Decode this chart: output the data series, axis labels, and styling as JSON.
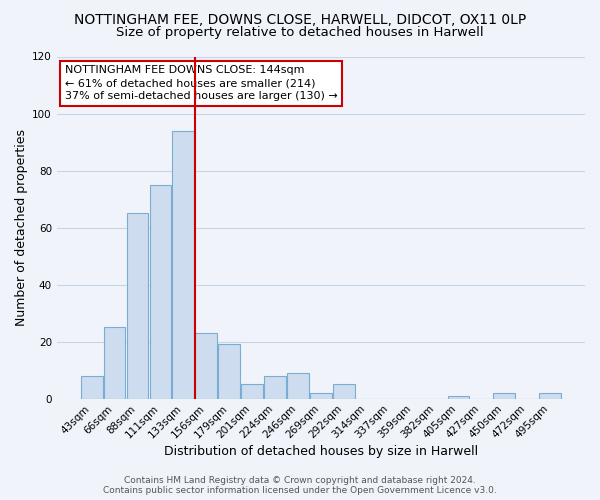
{
  "title": "NOTTINGHAM FEE, DOWNS CLOSE, HARWELL, DIDCOT, OX11 0LP",
  "subtitle": "Size of property relative to detached houses in Harwell",
  "xlabel": "Distribution of detached houses by size in Harwell",
  "ylabel": "Number of detached properties",
  "bar_labels": [
    "43sqm",
    "66sqm",
    "88sqm",
    "111sqm",
    "133sqm",
    "156sqm",
    "179sqm",
    "201sqm",
    "224sqm",
    "246sqm",
    "269sqm",
    "292sqm",
    "314sqm",
    "337sqm",
    "359sqm",
    "382sqm",
    "405sqm",
    "427sqm",
    "450sqm",
    "472sqm",
    "495sqm"
  ],
  "bar_heights": [
    8,
    25,
    65,
    75,
    94,
    23,
    19,
    5,
    8,
    9,
    2,
    5,
    0,
    0,
    0,
    0,
    1,
    0,
    2,
    0,
    2
  ],
  "bar_color": "#cddcee",
  "bar_edge_color": "#7aadd4",
  "vline_x_index": 4,
  "vline_color": "#cc0000",
  "ylim": [
    0,
    120
  ],
  "yticks": [
    0,
    20,
    40,
    60,
    80,
    100,
    120
  ],
  "annotation_title": "NOTTINGHAM FEE DOWNS CLOSE: 144sqm",
  "annotation_line1": "← 61% of detached houses are smaller (214)",
  "annotation_line2": "37% of semi-detached houses are larger (130) →",
  "annotation_box_color": "#ffffff",
  "annotation_box_edge": "#cc0000",
  "footer_line1": "Contains HM Land Registry data © Crown copyright and database right 2024.",
  "footer_line2": "Contains public sector information licensed under the Open Government Licence v3.0.",
  "title_fontsize": 10,
  "subtitle_fontsize": 9.5,
  "axis_label_fontsize": 9,
  "tick_fontsize": 7.5,
  "annotation_fontsize": 8,
  "footer_fontsize": 6.5,
  "background_color": "#f0f4fa",
  "grid_color": "#c8d4e8"
}
